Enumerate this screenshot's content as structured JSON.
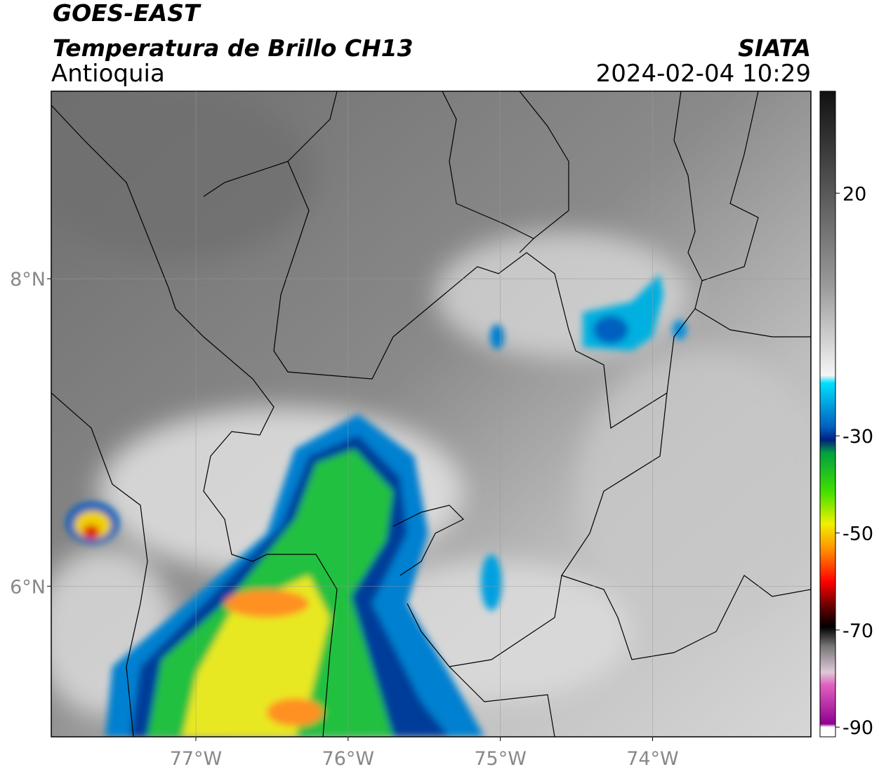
{
  "header": {
    "title": "GOES-EAST",
    "subtitle": "Temperatura de Brillo CH13",
    "region": "Antioquia",
    "source": "SIATA",
    "datetime": "2024-02-04 10:29"
  },
  "map": {
    "xlim": [
      -77.95,
      -72.96
    ],
    "ylim": [
      5.02,
      9.22
    ],
    "xticks": [
      {
        "value": -77,
        "label": "77°W"
      },
      {
        "value": -76,
        "label": "76°W"
      },
      {
        "value": -75,
        "label": "75°W"
      },
      {
        "value": -74,
        "label": "74°W"
      }
    ],
    "yticks": [
      {
        "value": 6,
        "label": "6°N"
      },
      {
        "value": 8,
        "label": "8°N"
      }
    ],
    "grid": true
  },
  "colorbar": {
    "lim": [
      -92,
      41
    ],
    "ticks": [
      20,
      -30,
      -50,
      -70,
      -90
    ]
  }
}
